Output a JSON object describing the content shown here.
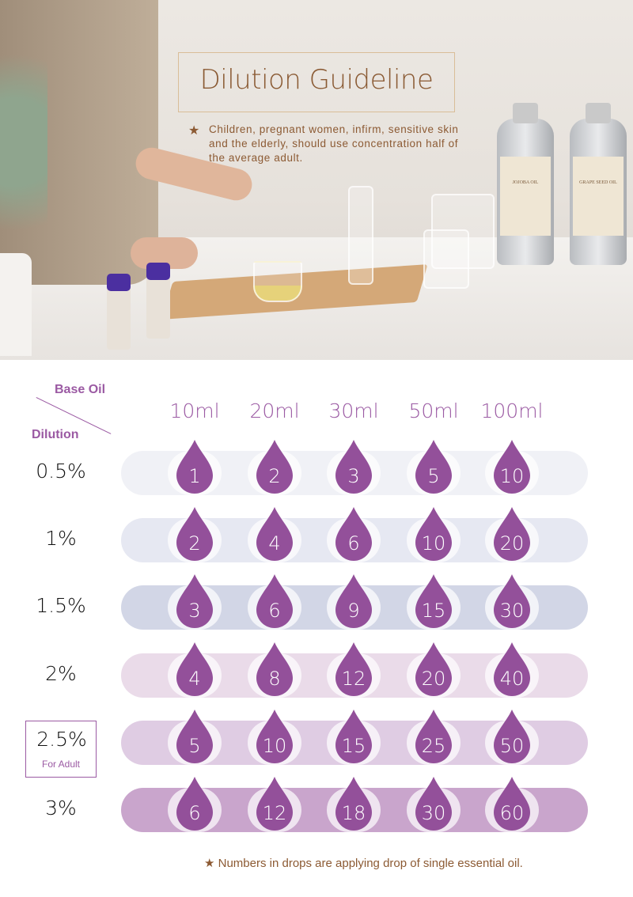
{
  "header": {
    "title": "Dilution Guideline",
    "note": "Children, pregnant women, infirm, sensitive skin and the elderly, should use concentration half of the average adult.",
    "note_icon": "star-icon",
    "bottle_labels": [
      "JOJOBA OIL",
      "GRAPE SEED OIL"
    ]
  },
  "table": {
    "corner_top": "Base Oil",
    "corner_bottom": "Dilution",
    "columns": [
      "10ml",
      "20ml",
      "30ml",
      "50ml",
      "100ml"
    ],
    "rows": [
      {
        "dilution": "0.5%",
        "drops": [
          "1",
          "2",
          "3",
          "5",
          "10"
        ],
        "color": "#f0f1f6"
      },
      {
        "dilution": "1%",
        "drops": [
          "2",
          "4",
          "6",
          "10",
          "20"
        ],
        "color": "#e6e8f2"
      },
      {
        "dilution": "1.5%",
        "drops": [
          "3",
          "6",
          "9",
          "15",
          "30"
        ],
        "color": "#d2d6e6"
      },
      {
        "dilution": "2%",
        "drops": [
          "4",
          "8",
          "12",
          "20",
          "40"
        ],
        "color": "#eadbe9"
      },
      {
        "dilution": "2.5%",
        "sub": "For Adult",
        "drops": [
          "5",
          "10",
          "15",
          "25",
          "50"
        ],
        "color": "#dfcce3"
      },
      {
        "dilution": "3%",
        "drops": [
          "6",
          "12",
          "18",
          "30",
          "60"
        ],
        "color": "#c9a5cc"
      }
    ],
    "drop_color": "#93509a",
    "accent": "#9b5aa3"
  },
  "footer": {
    "note": "Numbers in drops are applying drop of single essential oil.",
    "icon": "star-icon"
  }
}
